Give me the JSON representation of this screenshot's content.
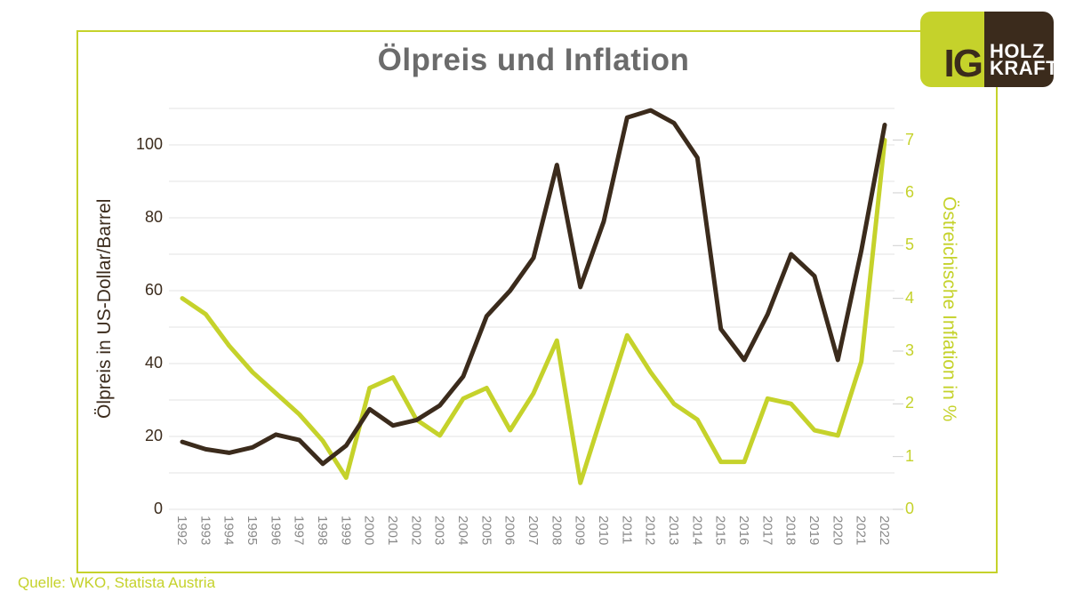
{
  "title": "Ölpreis und Inflation",
  "source": "Quelle: WKO, Statista Austria",
  "logo": {
    "ig": "IG",
    "line1": "HOLZ",
    "line2": "KRAFT"
  },
  "colors": {
    "oil_line": "#3b2b1c",
    "inflation_line": "#c5d22b",
    "title_text": "#6b6b6b",
    "x_label_text": "#8a8a8a",
    "gridline": "#e3e3e3",
    "frame_border": "#c5d22b",
    "logo_brown": "#3b2b1c",
    "logo_green": "#c5d22b"
  },
  "chart_data": {
    "type": "line",
    "title": "Ölpreis und Inflation",
    "categories": [
      "1992",
      "1993",
      "1994",
      "1995",
      "1996",
      "1997",
      "1998",
      "1999",
      "2000",
      "2001",
      "2002",
      "2003",
      "2004",
      "2005",
      "2006",
      "2007",
      "2008",
      "2009",
      "2010",
      "2011",
      "2012",
      "2013",
      "2014",
      "2015",
      "2016",
      "2017",
      "2018",
      "2019",
      "2020",
      "2021",
      "2022"
    ],
    "series": [
      {
        "name": "Ölpreis in US-Dollar/Barrel",
        "axis": "left",
        "color": "#3b2b1c",
        "values": [
          18.5,
          16.5,
          15.5,
          17,
          20.5,
          19,
          12.5,
          17.5,
          27.5,
          23,
          24.5,
          28.5,
          36.5,
          53,
          60,
          69,
          94.5,
          61,
          79,
          107.5,
          109.5,
          106,
          96.5,
          49.5,
          41,
          53.5,
          70,
          64,
          41,
          71,
          105.5
        ]
      },
      {
        "name": "Östreichische Inflation in %",
        "axis": "right",
        "color": "#c5d22b",
        "values": [
          4.0,
          3.7,
          3.1,
          2.6,
          2.2,
          1.8,
          1.3,
          0.6,
          2.3,
          2.5,
          1.7,
          1.4,
          2.1,
          2.3,
          1.5,
          2.2,
          3.2,
          0.5,
          1.9,
          3.3,
          2.6,
          2.0,
          1.7,
          0.9,
          0.9,
          2.1,
          2.0,
          1.5,
          1.4,
          2.8,
          7.0
        ]
      }
    ],
    "left_axis": {
      "label": "Ölpreis in US-Dollar/Barrel",
      "ticks": [
        0,
        20,
        40,
        60,
        80,
        100
      ],
      "range": [
        0,
        110
      ]
    },
    "right_axis": {
      "label": "Östreichische Inflation in %",
      "ticks": [
        0,
        1,
        2,
        3,
        4,
        5,
        6,
        7
      ],
      "range": [
        0,
        7.6
      ]
    },
    "x_axis": {
      "labels": [
        "1992",
        "1993",
        "1994",
        "1995",
        "1996",
        "1997",
        "1998",
        "1999",
        "2000",
        "2001",
        "2002",
        "2003",
        "2004",
        "2005",
        "2006",
        "2007",
        "2008",
        "2009",
        "2010",
        "2011",
        "2012",
        "2013",
        "2014",
        "2015",
        "2016",
        "2017",
        "2018",
        "2019",
        "2020",
        "2021",
        "2022"
      ]
    },
    "grid": "horizontal gridlines every 10 US-Dollar",
    "legend": "none"
  }
}
